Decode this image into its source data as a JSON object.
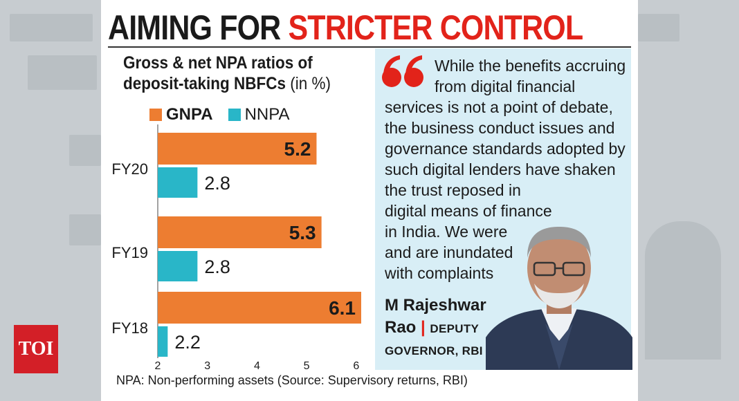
{
  "headline": {
    "part1": "AIMING FOR",
    "part2": "STRICTER CONTROL"
  },
  "logo": {
    "text": "TOI",
    "color": "#d31f27"
  },
  "chart_data": {
    "type": "bar",
    "orientation": "horizontal",
    "title_line1": "Gross & net NPA ratios of",
    "title_line2": "deposit-taking NBFCs",
    "title_unit": "(in %)",
    "categories": [
      "FY20",
      "FY19",
      "FY18"
    ],
    "series": [
      {
        "name": "GNPA",
        "color": "#ed7d31",
        "values": [
          5.2,
          5.3,
          6.1
        ]
      },
      {
        "name": "NNPA",
        "color": "#29b6c8",
        "values": [
          2.8,
          2.8,
          2.2
        ]
      }
    ],
    "value_labels": {
      "GNPA": [
        "5.2",
        "5.3",
        "6.1"
      ],
      "NNPA": [
        "2.8",
        "2.8",
        "2.2"
      ]
    },
    "xlim": [
      2,
      6.1
    ],
    "xticks": [
      "2",
      "3",
      "4",
      "5",
      "6"
    ],
    "legend": "top-left",
    "grid": false
  },
  "footnote": "NPA: Non-performing assets (Source: Supervisory returns, RBI)",
  "quote": {
    "lines": [
      "While the benefits accruing",
      "from digital financial",
      "services is not a point of debate,",
      "the business conduct issues and",
      "governance standards adopted by",
      "such digital lenders have shaken",
      "the trust reposed in",
      "digital means of finance",
      "in India. We were",
      "and are inundated",
      "with complaints"
    ],
    "speaker_name1": "M Rajeshwar",
    "speaker_name2": "Rao",
    "speaker_role1": "DEPUTY",
    "speaker_role2": "GOVERNOR, RBI",
    "accent": "#e2231a",
    "background": "#d8eef6"
  }
}
